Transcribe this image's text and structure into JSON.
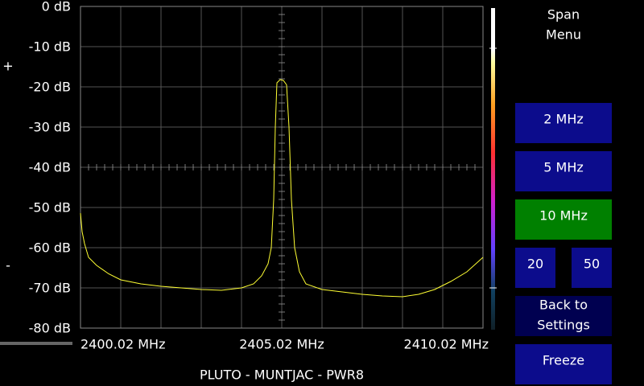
{
  "chart_data": {
    "type": "line",
    "title": "PLUTO - MUNTJAC - PWR8",
    "x": [
      2400.02,
      2400.06,
      2400.12,
      2400.22,
      2400.42,
      2400.72,
      2401.02,
      2401.52,
      2402.02,
      2402.52,
      2403.02,
      2403.52,
      2404.02,
      2404.32,
      2404.52,
      2404.68,
      2404.76,
      2404.82,
      2404.86,
      2404.9,
      2404.98,
      2405.06,
      2405.14,
      2405.2,
      2405.26,
      2405.34,
      2405.46,
      2405.62,
      2406.02,
      2406.52,
      2407.02,
      2407.52,
      2408.02,
      2408.42,
      2408.82,
      2409.22,
      2409.62,
      2410.02
    ],
    "series": [
      {
        "color": "#ffff33",
        "values": [
          -51.4,
          -56,
          -59,
          -62.4,
          -64.4,
          -66.5,
          -68,
          -69,
          -69.6,
          -70,
          -70.4,
          -70.6,
          -70,
          -69,
          -67,
          -64,
          -60,
          -48,
          -30,
          -19,
          -18.2,
          -18.4,
          -19.5,
          -30,
          -48,
          -60,
          -66,
          -69,
          -70.4,
          -71,
          -71.6,
          -72,
          -72.2,
          -71.6,
          -70.4,
          -68.4,
          -66,
          -62.4
        ]
      }
    ],
    "xlim": [
      2400.02,
      2410.02
    ],
    "xticks": [
      {
        "value": 2400.02,
        "label": "2400.02 MHz"
      },
      {
        "value": 2405.02,
        "label": "2405.02 MHz"
      },
      {
        "value": 2410.02,
        "label": "2410.02 MHz"
      }
    ],
    "xgrid": [
      2400.02,
      2401.02,
      2402.02,
      2403.02,
      2404.02,
      2405.02,
      2406.02,
      2407.02,
      2408.02,
      2409.02,
      2410.02
    ],
    "ylim": [
      -80,
      0
    ],
    "yticks": [
      {
        "value": 0,
        "label": "0 dB"
      },
      {
        "value": -10,
        "label": "-10 dB"
      },
      {
        "value": -20,
        "label": "-20 dB"
      },
      {
        "value": -30,
        "label": "-30 dB"
      },
      {
        "value": -40,
        "label": "-40 dB"
      },
      {
        "value": -50,
        "label": "-50 dB"
      },
      {
        "value": -60,
        "label": "-60 dB"
      },
      {
        "value": -70,
        "label": "-70 dB"
      },
      {
        "value": -80,
        "label": "-80 dB"
      }
    ],
    "grid": true
  },
  "controls": {
    "plus": "+",
    "minus": "-",
    "menu_title": [
      "Span",
      "Menu"
    ],
    "buttons": [
      "2 MHz",
      "5 MHz",
      "10 MHz",
      "20",
      "50"
    ],
    "back": [
      "Back to",
      "Settings"
    ],
    "freeze": "Freeze"
  }
}
